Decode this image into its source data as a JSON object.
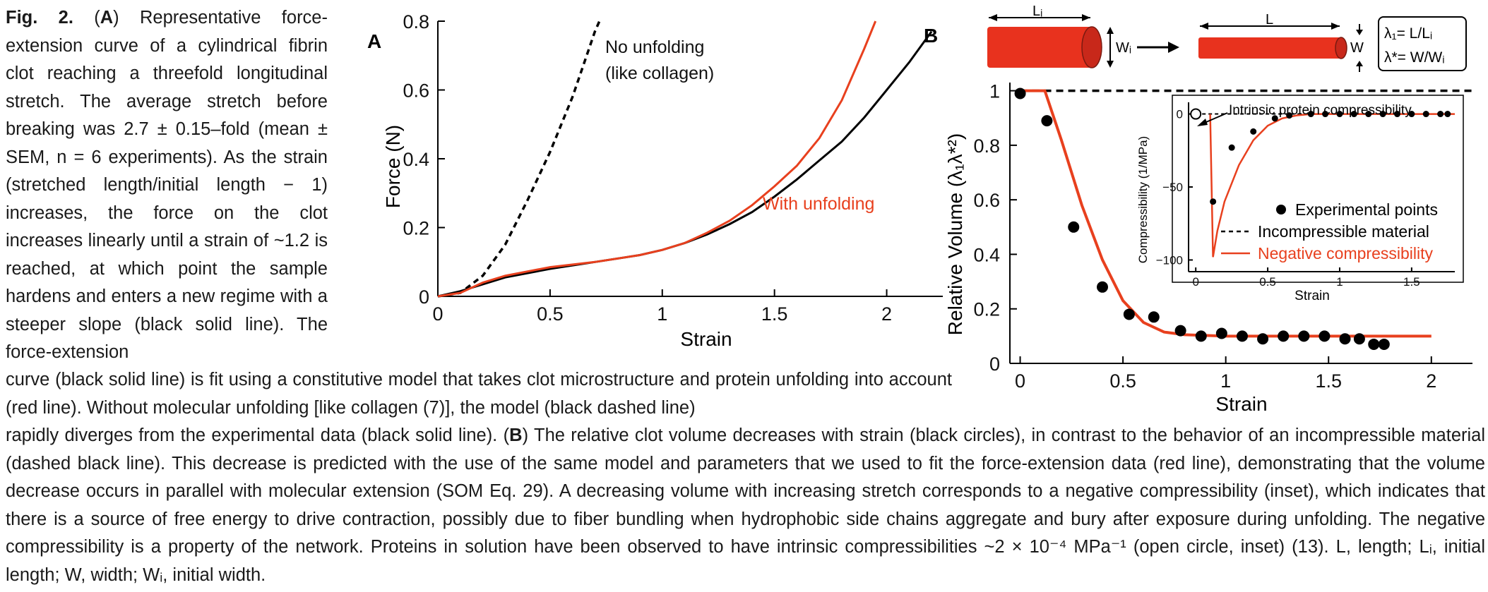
{
  "caption": {
    "fig_label": "Fig. 2.",
    "part_a_marker": "A",
    "part_a": " Representative force-extension curve of a cylindrical fibrin clot reaching a threefold longitudinal stretch. The average stretch before breaking was 2.7 ± 0.15–fold (mean ± SEM, n = 6 experiments). As the strain (stretched length/initial length − 1) increases, the force on the clot increases linearly until a strain of ~1.2 is reached, at which point the sample hardens and enters a new regime with a steeper slope (black solid line). The force-extension",
    "line_continue": "curve (black solid line) is fit using a constitutive model that takes clot microstructure and protein unfolding into account (red line). Without molecular unfolding [like collagen (7)], the model (black dashed line)",
    "part_b_lead": "rapidly diverges from the experimental data (black solid line). ",
    "part_b_marker": "B",
    "part_b": " The relative clot volume decreases with strain (black circles), in contrast to the behavior of an incompressible material (dashed black line). This decrease is predicted with the use of the same model and parameters that we used to fit the force-extension data (red line), demonstrating that the volume decrease occurs in parallel with molecular extension (SOM Eq. 29). A decreasing volume with increasing stretch corresponds to a negative compressibility (inset), which indicates that there is a source of free energy to drive contraction, possibly due to fiber bundling when hydrophobic side chains aggregate and bury after exposure during unfolding. The negative compressibility is a property of the network. Proteins in solution have been observed to have intrinsic compressibilities ~2 × 10⁻⁴ MPa⁻¹ (open circle, inset) (13). L, length; Lᵢ, initial length; W, width; Wᵢ, initial width."
  },
  "chart_data": [
    {
      "panel": "A",
      "type": "line",
      "xlabel": "Strain",
      "ylabel": "Force (N)",
      "xlim": [
        0,
        2.25
      ],
      "ylim": [
        0,
        0.8
      ],
      "x_ticks": [
        0,
        0.5,
        1,
        1.5,
        2
      ],
      "x_tick_labels": [
        "0",
        "0.5",
        "1",
        "1.5",
        "2"
      ],
      "y_ticks": [
        0,
        0.2,
        0.4,
        0.6,
        0.8
      ],
      "y_tick_labels": [
        "0",
        "0.2",
        "0.4",
        "0.6",
        "0.8"
      ],
      "series": [
        {
          "style": "black-solid",
          "color": "#000000",
          "x": [
            0,
            0.1,
            0.2,
            0.3,
            0.5,
            0.7,
            0.9,
            1.0,
            1.1,
            1.2,
            1.3,
            1.4,
            1.5,
            1.6,
            1.7,
            1.8,
            1.9,
            2.0,
            2.1,
            2.2
          ],
          "y": [
            0,
            0.015,
            0.035,
            0.055,
            0.08,
            0.1,
            0.12,
            0.135,
            0.155,
            0.18,
            0.21,
            0.245,
            0.29,
            0.34,
            0.395,
            0.45,
            0.52,
            0.6,
            0.68,
            0.77
          ]
        },
        {
          "style": "black-dashed",
          "color": "#000000",
          "label": "No unfolding\n(like collagen)",
          "x": [
            0,
            0.1,
            0.2,
            0.3,
            0.4,
            0.5,
            0.6,
            0.7,
            0.72
          ],
          "y": [
            0,
            0.01,
            0.06,
            0.15,
            0.28,
            0.42,
            0.58,
            0.77,
            0.8
          ]
        },
        {
          "style": "red-solid",
          "color": "#e8401e",
          "label": "With unfolding",
          "x": [
            0,
            0.1,
            0.2,
            0.3,
            0.5,
            0.7,
            0.9,
            1.0,
            1.1,
            1.2,
            1.3,
            1.4,
            1.5,
            1.6,
            1.7,
            1.8,
            1.9,
            1.95
          ],
          "y": [
            0,
            0.01,
            0.04,
            0.06,
            0.085,
            0.1,
            0.12,
            0.135,
            0.155,
            0.185,
            0.22,
            0.265,
            0.32,
            0.38,
            0.46,
            0.57,
            0.72,
            0.8
          ]
        }
      ]
    },
    {
      "panel": "B",
      "type": "scatter",
      "xlabel": "Strain",
      "ylabel": "Relative Volume (λ₁λ*²)",
      "xlim": [
        -0.05,
        2.2
      ],
      "ylim": [
        0,
        1.03
      ],
      "x_ticks": [
        0,
        0.5,
        1,
        1.5,
        2
      ],
      "x_tick_labels": [
        "0",
        "0.5",
        "1",
        "1.5",
        "2"
      ],
      "y_ticks": [
        0,
        0.2,
        0.4,
        0.6,
        0.8,
        1
      ],
      "y_tick_labels": [
        "0",
        "0.2",
        "0.4",
        "0.6",
        "0.8",
        "1"
      ],
      "points": {
        "x": [
          0,
          0.13,
          0.26,
          0.4,
          0.53,
          0.65,
          0.78,
          0.88,
          0.98,
          1.08,
          1.18,
          1.28,
          1.38,
          1.48,
          1.58,
          1.65,
          1.72,
          1.77
        ],
        "y": [
          0.99,
          0.89,
          0.5,
          0.28,
          0.18,
          0.17,
          0.12,
          0.1,
          0.11,
          0.1,
          0.09,
          0.1,
          0.1,
          0.1,
          0.09,
          0.09,
          0.07,
          0.07
        ]
      },
      "dashed_line": {
        "y": 1.0
      },
      "red_curve": {
        "x": [
          0,
          0.1,
          0.12,
          0.2,
          0.3,
          0.4,
          0.5,
          0.6,
          0.7,
          0.8,
          1.0,
          1.5,
          2.0
        ],
        "y": [
          1.0,
          1.0,
          1.0,
          0.82,
          0.58,
          0.38,
          0.23,
          0.15,
          0.115,
          0.105,
          0.1,
          0.1,
          0.1
        ]
      },
      "schematic": {
        "label_li": "Lᵢ",
        "label_wi": "Wᵢ",
        "label_l": "L",
        "label_w": "W",
        "eq1": "λ₁= L/Lᵢ",
        "eq2": "λ*= W/Wᵢ"
      },
      "inset": {
        "type": "scatter",
        "xlabel": "Strain",
        "ylabel": "Compressibility (1/MPa)",
        "xlim": [
          -0.05,
          1.8
        ],
        "ylim": [
          -108,
          8
        ],
        "x_ticks": [
          0,
          0.5,
          1,
          1.5
        ],
        "x_tick_labels": [
          "0",
          "0.5",
          "1",
          "1.5"
        ],
        "y_ticks": [
          0,
          -50,
          -100
        ],
        "y_tick_labels": [
          "0",
          "−50",
          "−100"
        ],
        "annotation": "Intrinsic protein compressibility",
        "points": {
          "x": [
            0.12,
            0.25,
            0.4,
            0.55,
            0.65,
            0.8,
            0.9,
            1.0,
            1.1,
            1.2,
            1.3,
            1.4,
            1.5,
            1.6,
            1.7,
            1.75
          ],
          "y": [
            -60,
            -23,
            -12,
            -3,
            -1,
            0,
            0,
            0,
            0,
            0,
            0,
            0,
            0,
            0,
            0,
            0
          ]
        },
        "open_point": {
          "x": 0,
          "y": 0
        },
        "red_curve": {
          "x": [
            0.1,
            0.12,
            0.15,
            0.2,
            0.3,
            0.4,
            0.5,
            0.6,
            0.7,
            0.8,
            1.0,
            1.5,
            1.8
          ],
          "y": [
            0,
            -98,
            -80,
            -60,
            -35,
            -18,
            -8,
            -3,
            -1,
            0,
            0,
            0,
            0
          ]
        },
        "legend": [
          "Experimental points",
          "Incompressible material",
          "Negative compressibility"
        ]
      }
    }
  ]
}
